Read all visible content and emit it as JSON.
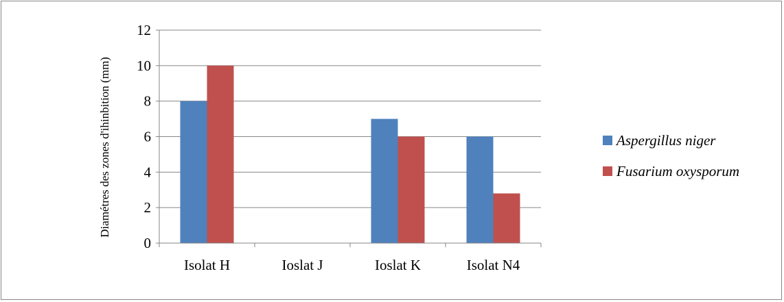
{
  "chart_data": {
    "type": "bar",
    "ylabel": "Diamétres des zones d'ihinbition (mm)",
    "xlabel": "",
    "ylim": [
      0,
      12
    ],
    "yticks": [
      0,
      2,
      4,
      6,
      8,
      10,
      12
    ],
    "grid": true,
    "legend_position": "right",
    "categories": [
      "Isolat H",
      "Ioslat J",
      "Ioslat K",
      "Isolat N4"
    ],
    "series": [
      {
        "name": "Aspergillus niger",
        "color": "#4f81bd",
        "values": [
          8,
          0,
          7,
          6
        ]
      },
      {
        "name": "Fusarium oxysporum",
        "color": "#c0504d",
        "values": [
          10,
          0,
          6,
          2.8
        ]
      }
    ]
  }
}
